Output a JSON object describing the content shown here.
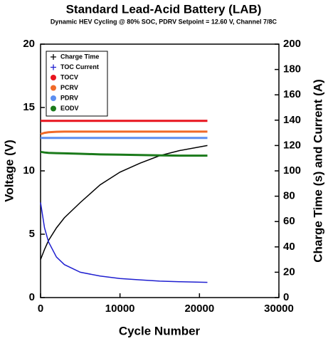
{
  "chart_data": {
    "type": "line",
    "title": "Standard Lead-Acid Battery (LAB)",
    "subtitle": "Dynamic HEV Cycling @ 80% SOC, PDRV Setpoint = 12.60 V, Channel 7/8C",
    "x_label": "Cycle Number",
    "y_label": "Voltage (V)",
    "y2_label": "Charge Time (s) and Current (A)",
    "x": [
      0,
      500,
      1000,
      2000,
      3000,
      5000,
      7500,
      10000,
      12500,
      15000,
      17500,
      21000
    ],
    "xlim": [
      0,
      30000
    ],
    "xticks": [
      0,
      10000,
      20000,
      30000
    ],
    "ylim": [
      0,
      20
    ],
    "yticks": [
      0,
      5,
      10,
      15,
      20
    ],
    "y2lim": [
      0,
      200
    ],
    "y2ticks": [
      0,
      20,
      40,
      60,
      80,
      100,
      120,
      140,
      160,
      180,
      200
    ],
    "legend": "upper-left",
    "series": [
      {
        "name": "Charge Time",
        "color": "#000000",
        "marker": "+",
        "axis": "y2",
        "values": [
          30,
          38,
          45,
          55,
          63,
          75,
          89,
          99,
          106,
          112,
          116,
          120
        ]
      },
      {
        "name": "TOC Current",
        "color": "#1f1fd0",
        "marker": "+",
        "axis": "y2",
        "values": [
          75,
          55,
          44,
          32,
          26,
          20,
          17,
          15,
          14,
          13,
          12.5,
          12
        ]
      },
      {
        "name": "TOCV",
        "color": "#e8141e",
        "marker": "o",
        "values": [
          13.95,
          13.95,
          13.95,
          13.95,
          13.95,
          13.95,
          13.95,
          13.95,
          13.95,
          13.95,
          13.95,
          13.95
        ]
      },
      {
        "name": "PCRV",
        "color": "#f06a28",
        "marker": "o",
        "values": [
          12.9,
          13.0,
          13.05,
          13.08,
          13.1,
          13.1,
          13.1,
          13.1,
          13.1,
          13.1,
          13.1,
          13.1
        ]
      },
      {
        "name": "PDRV",
        "color": "#5b8ef0",
        "marker": "o",
        "values": [
          12.6,
          12.6,
          12.6,
          12.6,
          12.6,
          12.6,
          12.6,
          12.6,
          12.6,
          12.6,
          12.6,
          12.6
        ]
      },
      {
        "name": "EODV",
        "color": "#1a7a1a",
        "marker": "o",
        "values": [
          11.5,
          11.45,
          11.42,
          11.4,
          11.38,
          11.35,
          11.3,
          11.28,
          11.25,
          11.22,
          11.2,
          11.2
        ]
      }
    ]
  }
}
